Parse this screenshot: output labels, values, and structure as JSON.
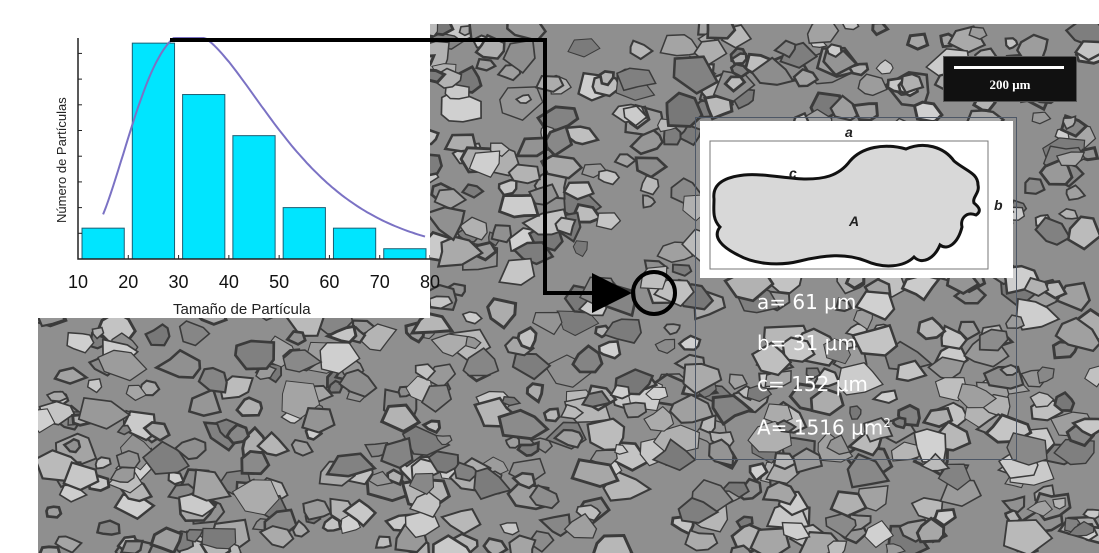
{
  "chart_data": {
    "type": "bar",
    "x_bin_centers": [
      15,
      25,
      35,
      45,
      55,
      65,
      75
    ],
    "values": [
      6,
      42,
      32,
      24,
      10,
      6,
      2
    ],
    "xlim": [
      10,
      80
    ],
    "ylim": [
      0,
      43
    ],
    "x_ticks": [
      "10",
      "20",
      "30",
      "40",
      "50",
      "60",
      "70",
      "80"
    ],
    "xlabel": "Tamaño de Partícula",
    "ylabel": "Número de Partículas",
    "fit_curve": "log-normal",
    "colors": {
      "bars": "#00e5ff",
      "bar_edge": "#1b5f74",
      "curve": "#7b72c4"
    }
  },
  "micrograph": {
    "scale_bar_label": "200 μm",
    "colors": {
      "background": "#8f8f8f",
      "grain": "#b5b5b5",
      "boundary": "#3b3b3b"
    }
  },
  "particle": {
    "labels": {
      "a": "a",
      "b": "b",
      "c": "c",
      "A": "A"
    },
    "measurements": [
      {
        "label": "a=",
        "value": "61 μm"
      },
      {
        "label": "b=",
        "value": "31 μm"
      },
      {
        "label": "c=",
        "value": "152 μm"
      },
      {
        "label": "A=",
        "value": "1516 μm",
        "superscript": "2"
      }
    ]
  }
}
